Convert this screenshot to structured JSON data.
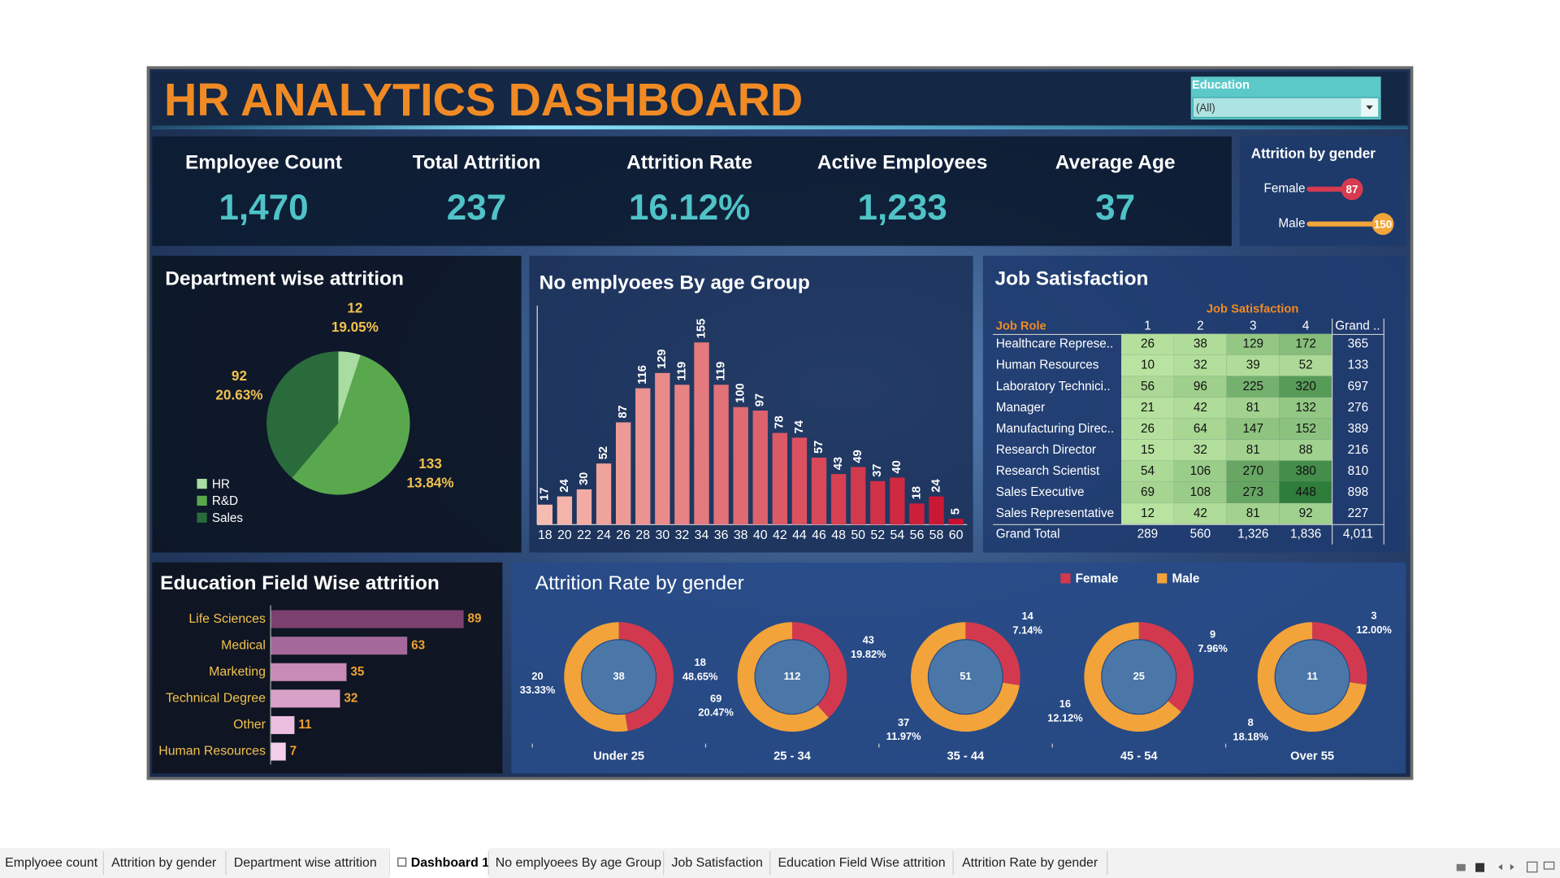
{
  "header": {
    "title": "HR ANALYTICS DASHBOARD"
  },
  "filter": {
    "label": "Education",
    "value": "(All)"
  },
  "kpis": [
    {
      "label": "Employee Count",
      "value": "1,470"
    },
    {
      "label": "Total Attrition",
      "value": "237"
    },
    {
      "label": "Attrition Rate",
      "value": "16.12%"
    },
    {
      "label": "Active Employees",
      "value": "1,233"
    },
    {
      "label": "Average Age",
      "value": "37"
    }
  ],
  "chart_data": [
    {
      "type": "lollipop",
      "title": "Attrition by gender",
      "categories": [
        "Female",
        "Male"
      ],
      "values": [
        87,
        150
      ],
      "colors": [
        "#d83a4f",
        "#f2a53a"
      ]
    },
    {
      "type": "pie",
      "title": "Department wise attrition",
      "categories": [
        "HR",
        "R&D",
        "Sales"
      ],
      "values": [
        12,
        133,
        92
      ],
      "rates": [
        19.05,
        13.84,
        20.63
      ],
      "rate_labels": [
        "19.05%",
        "13.84%",
        "20.63%"
      ],
      "colors": [
        "#a9dca0",
        "#5aa84e",
        "#2a6b3b"
      ],
      "legend": "bottom-left"
    },
    {
      "type": "bar",
      "title": "No emplyoees By age Group",
      "categories": [
        18,
        20,
        22,
        24,
        26,
        28,
        30,
        32,
        34,
        36,
        38,
        40,
        42,
        44,
        46,
        48,
        50,
        52,
        54,
        56,
        58,
        60
      ],
      "values": [
        17,
        24,
        30,
        52,
        87,
        116,
        129,
        119,
        155,
        119,
        100,
        97,
        78,
        74,
        57,
        43,
        49,
        37,
        40,
        18,
        24,
        5
      ],
      "color_range": [
        "#f6bcb0",
        "#c8102e"
      ]
    },
    {
      "type": "heatmap",
      "title": "Job Satisfaction",
      "column_title": "Job Satisfaction",
      "row_title": "Job Role",
      "columns": [
        "1",
        "2",
        "3",
        "4"
      ],
      "total_column_label": "Grand ..",
      "total_row_label": "Grand Total",
      "rows": [
        "Healthcare Represe..",
        "Human Resources",
        "Laboratory Technici..",
        "Manager",
        "Manufacturing Direc..",
        "Research Director",
        "Research Scientist",
        "Sales Executive",
        "Sales Representative"
      ],
      "values": [
        [
          26,
          38,
          129,
          172
        ],
        [
          10,
          32,
          39,
          52
        ],
        [
          56,
          96,
          225,
          320
        ],
        [
          21,
          42,
          81,
          132
        ],
        [
          26,
          64,
          147,
          152
        ],
        [
          15,
          32,
          81,
          88
        ],
        [
          54,
          106,
          270,
          380
        ],
        [
          69,
          108,
          273,
          448
        ],
        [
          12,
          42,
          81,
          92
        ]
      ],
      "row_totals": [
        365,
        133,
        697,
        276,
        389,
        216,
        810,
        898,
        227
      ],
      "column_totals": [
        289,
        560,
        1326,
        1836
      ],
      "column_totals_labels": [
        "289",
        "560",
        "1,326",
        "1,836"
      ],
      "grand_total": 4011,
      "grand_total_value_label": "4,011",
      "color_range": [
        "#b9e3a0",
        "#2f7d3a"
      ]
    },
    {
      "type": "hbar",
      "title": "Education Field Wise attrition",
      "categories": [
        "Life Sciences",
        "Medical",
        "Marketing",
        "Technical Degree",
        "Other",
        "Human Resources"
      ],
      "values": [
        89,
        63,
        35,
        32,
        11,
        7
      ],
      "colors": [
        "#7c406f",
        "#a5689b",
        "#c88ab7",
        "#d8a1c8",
        "#ecbfe0",
        "#f3cfe9"
      ]
    },
    {
      "type": "donut",
      "title": "Attrition Rate by gender",
      "categories": [
        "Under 25",
        "25 - 34",
        "35 - 44",
        "45 - 54",
        "Over 55"
      ],
      "totals": [
        38,
        112,
        51,
        25,
        11
      ],
      "legend": "top-right",
      "series": [
        {
          "name": "Female",
          "color": "#d3394e",
          "values": [
            18,
            43,
            14,
            9,
            3
          ],
          "rates": [
            48.65,
            19.82,
            7.14,
            7.96,
            12.0
          ],
          "rate_labels": [
            "48.65%",
            "19.82%",
            "7.14%",
            "7.96%",
            "12.00%"
          ]
        },
        {
          "name": "Male",
          "color": "#f2a33a",
          "values": [
            20,
            69,
            37,
            16,
            8
          ],
          "rates": [
            33.33,
            20.47,
            11.97,
            12.12,
            18.18
          ],
          "rate_labels": [
            "33.33%",
            "20.47%",
            "11.97%",
            "12.12%",
            "18.18%"
          ]
        }
      ]
    }
  ],
  "tabs": {
    "items": [
      "Emplyoee count",
      "Attrition by gender",
      "Department wise attrition",
      "Dashboard 1",
      "No emplyoees By age Group",
      "Job Satisfaction",
      "Education Field Wise attrition",
      "Attrition Rate by gender"
    ],
    "active": 3
  }
}
